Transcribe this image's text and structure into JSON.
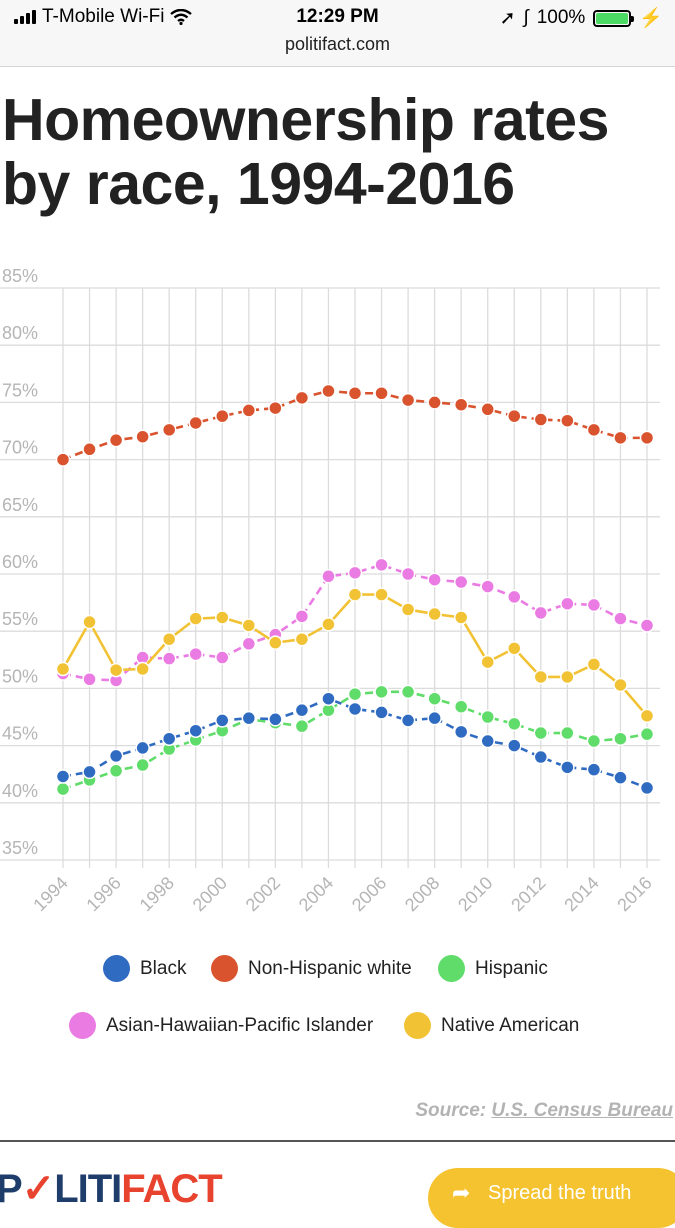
{
  "status_bar": {
    "carrier": "T-Mobile Wi-Fi",
    "time": "12:29 PM",
    "url": "politifact.com",
    "battery": "100%"
  },
  "title": "Homeownership rates by race, 1994-2016",
  "chart_data": {
    "type": "line",
    "title": "Homeownership rates by race, 1994-2016",
    "xlabel": "",
    "ylabel": "",
    "ylim": [
      35,
      85
    ],
    "yticks": [
      "35%",
      "40%",
      "45%",
      "50%",
      "55%",
      "60%",
      "65%",
      "70%",
      "75%",
      "80%",
      "85%"
    ],
    "x": [
      1994,
      1995,
      1996,
      1997,
      1998,
      1999,
      2000,
      2001,
      2002,
      2003,
      2004,
      2005,
      2006,
      2007,
      2008,
      2009,
      2010,
      2011,
      2012,
      2013,
      2014,
      2015,
      2016
    ],
    "xticks": [
      "1994",
      "1996",
      "1998",
      "2000",
      "2002",
      "2004",
      "2006",
      "2008",
      "2010",
      "2012",
      "2014",
      "2016"
    ],
    "series": [
      {
        "name": "Non-Hispanic white",
        "color": "#d9532e",
        "dashed": true,
        "values": [
          70.0,
          70.9,
          71.7,
          72.0,
          72.6,
          73.2,
          73.8,
          74.3,
          74.5,
          75.4,
          76.0,
          75.8,
          75.8,
          75.2,
          75.0,
          74.8,
          74.4,
          73.8,
          73.5,
          73.4,
          72.6,
          71.9,
          71.9
        ]
      },
      {
        "name": "Asian-Hawaiian-Pacific Islander",
        "color": "#ea7be3",
        "dashed": true,
        "values": [
          51.3,
          50.8,
          50.7,
          52.7,
          52.6,
          53.0,
          52.7,
          53.9,
          54.7,
          56.3,
          59.8,
          60.1,
          60.8,
          60.0,
          59.5,
          59.3,
          58.9,
          58.0,
          56.6,
          57.4,
          57.3,
          56.1,
          55.5
        ]
      },
      {
        "name": "Native American",
        "color": "#f2c235",
        "dashed": false,
        "values": [
          51.7,
          55.8,
          51.6,
          51.7,
          54.3,
          56.1,
          56.2,
          55.5,
          54.0,
          54.3,
          55.6,
          58.2,
          58.2,
          56.9,
          56.5,
          56.2,
          52.3,
          53.5,
          51.0,
          51.0,
          52.1,
          50.3,
          47.6
        ]
      },
      {
        "name": "Hispanic",
        "color": "#5fdc69",
        "dashed": true,
        "values": [
          41.2,
          42.0,
          42.8,
          43.3,
          44.7,
          45.5,
          46.3,
          47.3,
          47.0,
          46.7,
          48.1,
          49.5,
          49.7,
          49.7,
          49.1,
          48.4,
          47.5,
          46.9,
          46.1,
          46.1,
          45.4,
          45.6,
          46.0
        ]
      },
      {
        "name": "Black",
        "color": "#2f6bc1",
        "dashed": true,
        "values": [
          42.3,
          42.7,
          44.1,
          44.8,
          45.6,
          46.3,
          47.2,
          47.4,
          47.3,
          48.1,
          49.1,
          48.2,
          47.9,
          47.2,
          47.4,
          46.2,
          45.4,
          45.0,
          44.0,
          43.1,
          42.9,
          42.2,
          41.3
        ]
      }
    ],
    "legend": [
      {
        "name": "Black",
        "color": "#2f6bc1"
      },
      {
        "name": "Non-Hispanic white",
        "color": "#d9532e"
      },
      {
        "name": "Hispanic",
        "color": "#5fdc69"
      },
      {
        "name": "Asian-Hawaiian-Pacific Islander",
        "color": "#ea7be3"
      },
      {
        "name": "Native American",
        "color": "#f2c235"
      }
    ],
    "legend_position": "bottom",
    "grid": true
  },
  "source": {
    "prefix": "Source:",
    "link": "U.S. Census Bureau"
  },
  "footer": {
    "logo_a": "P",
    "logo_b": "LITI",
    "logo_c": "FACT",
    "button": "Spread the truth"
  }
}
